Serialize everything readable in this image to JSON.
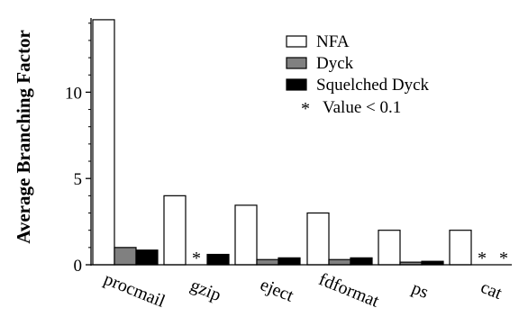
{
  "chart_data": {
    "type": "bar",
    "title": "",
    "xlabel": "",
    "ylabel": "Average Branching Factor",
    "ylim": [
      0,
      14.3
    ],
    "yticks": [
      0,
      5,
      10
    ],
    "grid": false,
    "legend_position": "top-right",
    "categories": [
      "procmail",
      "gzip",
      "eject",
      "fdformat",
      "ps",
      "cat"
    ],
    "series": [
      {
        "name": "NFA",
        "color": "#ffffff",
        "values": [
          14.2,
          4.0,
          3.45,
          3.0,
          2.0,
          2.0
        ]
      },
      {
        "name": "Dyck",
        "color": "#808080",
        "values": [
          1.0,
          0.0,
          0.3,
          0.3,
          0.15,
          0.0
        ]
      },
      {
        "name": "Squelched Dyck",
        "color": "#000000",
        "values": [
          0.85,
          0.6,
          0.4,
          0.4,
          0.2,
          0.0
        ]
      }
    ],
    "small_value_marker": "*",
    "small_value_points": [
      {
        "category": "gzip",
        "series": "Dyck"
      },
      {
        "category": "cat",
        "series": "Dyck"
      },
      {
        "category": "cat",
        "series": "Squelched Dyck"
      }
    ],
    "legend_note": {
      "symbol": "*",
      "label": "Value < 0.1"
    }
  }
}
